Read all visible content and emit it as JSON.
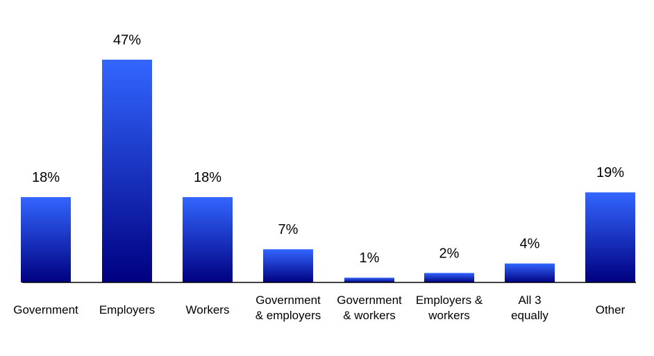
{
  "chart_data": {
    "type": "bar",
    "categories": [
      [
        "Government"
      ],
      [
        "Employers"
      ],
      [
        "Workers"
      ],
      [
        "Government",
        "& employers"
      ],
      [
        "Government",
        "& workers"
      ],
      [
        "Employers &",
        "workers"
      ],
      [
        "All 3",
        "equally"
      ],
      [
        "Other"
      ]
    ],
    "values": [
      18,
      47,
      18,
      7,
      1,
      2,
      4,
      19
    ],
    "value_labels": [
      "18%",
      "47%",
      "18%",
      "7%",
      "1%",
      "2%",
      "4%",
      "19%"
    ],
    "unit": "%",
    "title": "",
    "xlabel": "",
    "ylabel": "",
    "ylim": [
      0,
      47
    ],
    "grid": false,
    "legend": "none",
    "colors": {
      "bar_top": "#3366ff",
      "bar_bottom": "#000080",
      "axis": "#000000",
      "text": "#000000"
    }
  }
}
